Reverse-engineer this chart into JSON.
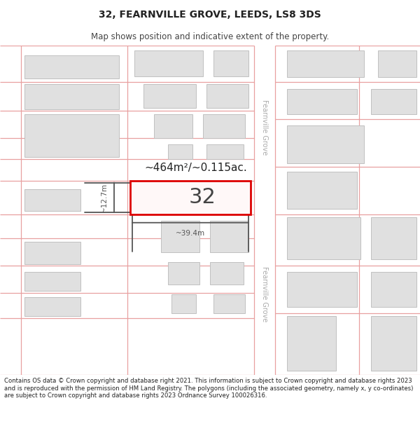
{
  "title": "32, FEARNVILLE GROVE, LEEDS, LS8 3DS",
  "subtitle": "Map shows position and indicative extent of the property.",
  "copyright": "Contains OS data © Crown copyright and database right 2021. This information is subject to Crown copyright and database rights 2023 and is reproduced with the permission of HM Land Registry. The polygons (including the associated geometry, namely x, y co-ordinates) are subject to Crown copyright and database rights 2023 Ordnance Survey 100026316.",
  "background_color": "#ffffff",
  "map_bg": "#ffffff",
  "plot_line_color": "#e8a0a0",
  "building_fill": "#e0e0e0",
  "building_edge": "#c0c0c0",
  "highlight_fill": "#fff8f8",
  "highlight_edge": "#dd0000",
  "highlight_lw": 2.0,
  "area_label": "~464m²/~0.115ac.",
  "width_label": "~39.4m",
  "height_label": "~12.7m",
  "plot_number": "32",
  "road_label": "Fearnville Grove",
  "title_fontsize": 10,
  "subtitle_fontsize": 9,
  "road_label_color": "#aaaaaa",
  "dim_color": "#555555",
  "text_color": "#222222"
}
